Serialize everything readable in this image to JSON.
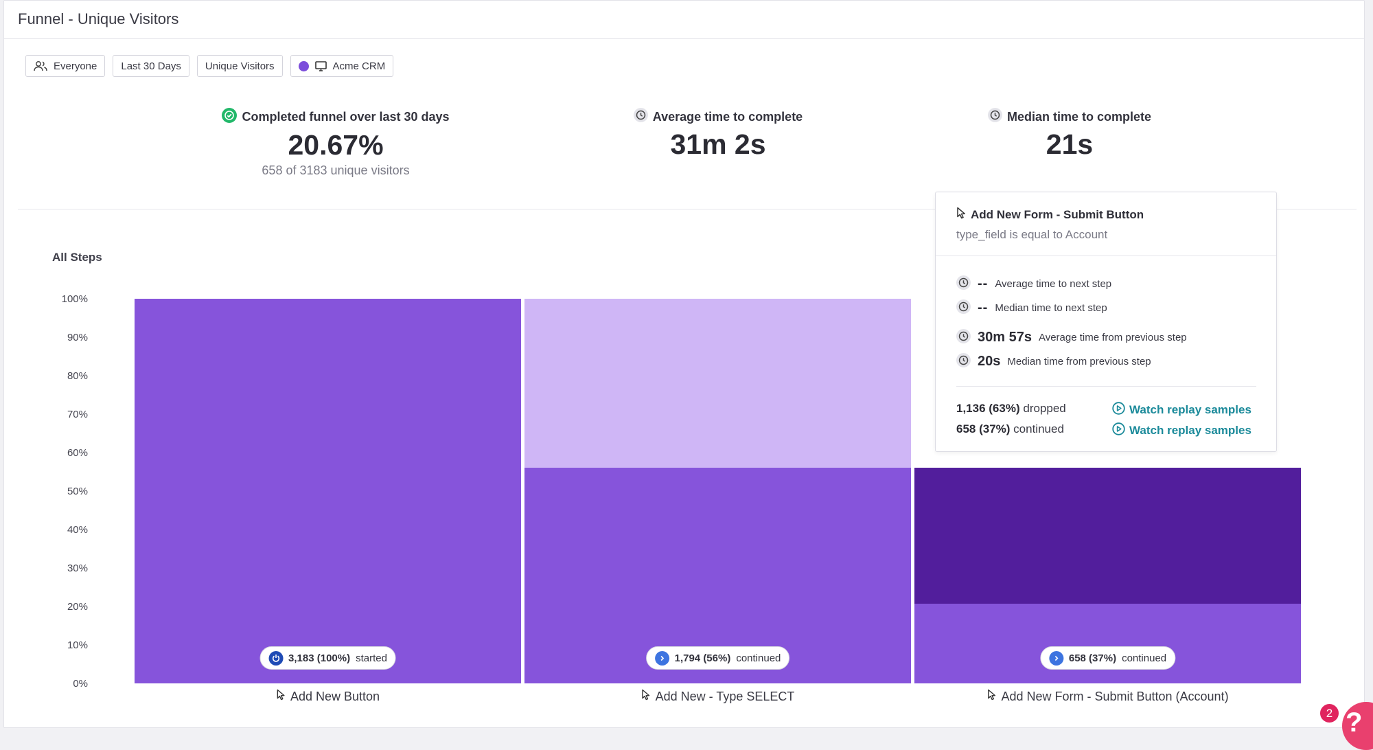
{
  "header": {
    "title": "Funnel - Unique Visitors"
  },
  "filters": [
    {
      "label": "Everyone",
      "icon": "users-icon"
    },
    {
      "label": "Last 30 Days"
    },
    {
      "label": "Unique Visitors"
    },
    {
      "label": "Acme CRM",
      "icon": "desktop-icon",
      "color": "#7c4ddb"
    }
  ],
  "stats": {
    "completed": {
      "label": "Completed funnel over last 30 days",
      "value": "20.67%",
      "sub": "658 of 3183 unique visitors",
      "icon": "check-circle-icon"
    },
    "average": {
      "label": "Average time to complete",
      "value": "31m 2s",
      "icon": "clock-icon"
    },
    "median": {
      "label": "Median time to complete",
      "value": "21s",
      "icon": "clock-icon"
    }
  },
  "chart_title": "All Steps",
  "chart_data": {
    "type": "bar",
    "categories": [
      "Add New Button",
      "Add New - Type SELECT",
      "Add New Form - Submit Button (Account)"
    ],
    "series": [
      {
        "name": "continued",
        "values": [
          100,
          56,
          20.67
        ]
      },
      {
        "name": "dropped",
        "values": [
          0,
          44,
          35.33
        ]
      }
    ],
    "ylim": [
      0,
      100
    ],
    "yticks": [
      "100%",
      "90%",
      "80%",
      "70%",
      "60%",
      "50%",
      "40%",
      "30%",
      "20%",
      "10%",
      "0%"
    ],
    "step_labels": [
      {
        "value": "3,183 (100%)",
        "text": "started"
      },
      {
        "value": "1,794 (56%)",
        "text": "continued"
      },
      {
        "value": "658 (37%)",
        "text": "continued"
      }
    ],
    "colors": {
      "base": "#8654db",
      "dropped_step2": "#cfb6f6",
      "dropped_step3": "#521e9c"
    }
  },
  "tooltip": {
    "title": "Add New Form - Submit Button",
    "condition": "type_field is equal to Account",
    "rows": [
      {
        "value": "--",
        "label": "Average time to next step"
      },
      {
        "value": "--",
        "label": "Median time to next step"
      },
      {
        "value": "30m 57s",
        "label": "Average time from previous step"
      },
      {
        "value": "20s",
        "label": "Median time from previous step"
      }
    ],
    "dropped": {
      "value": "1,136 (63%)",
      "text": "dropped"
    },
    "continued": {
      "value": "658 (37%)",
      "text": "continued"
    },
    "link_label": "Watch replay samples"
  },
  "help": {
    "badge": "2"
  }
}
